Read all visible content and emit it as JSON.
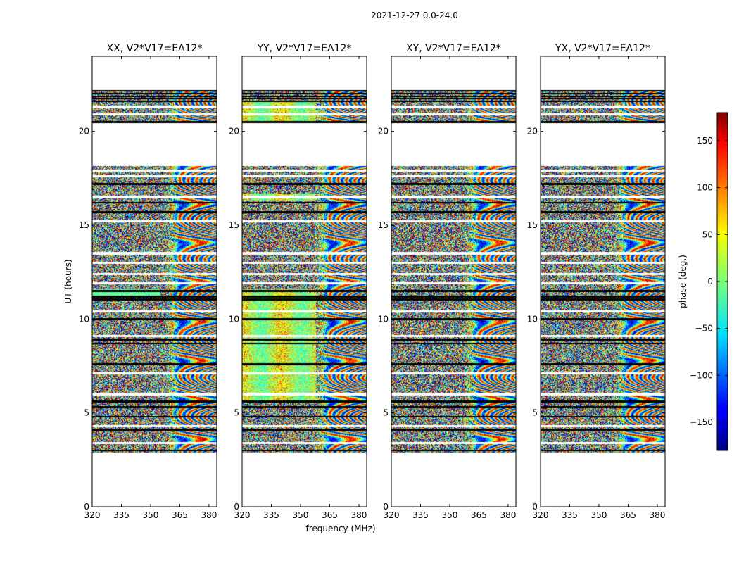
{
  "chart_data": {
    "type": "heatmap",
    "suptitle": "2021-12-27 0.0-24.0",
    "panels": [
      {
        "title": "XX, V2*V17=EA12*",
        "pol": "XX"
      },
      {
        "title": "YY, V2*V17=EA12*",
        "pol": "YY"
      },
      {
        "title": "XY, V2*V17=EA12*",
        "pol": "XY"
      },
      {
        "title": "YX, V2*V17=EA12*",
        "pol": "YX"
      }
    ],
    "xlabel": "frequency (MHz)",
    "ylabel": "UT (hours)",
    "xlim": [
      320,
      384
    ],
    "ylim": [
      0,
      24
    ],
    "xticks": [
      320,
      335,
      350,
      365,
      380
    ],
    "yticks": [
      0,
      5,
      10,
      15,
      20
    ],
    "colorbar": {
      "label": "phase (deg.)",
      "colormap": "jet",
      "range": [
        -180,
        180
      ],
      "ticks": [
        -150,
        -100,
        -50,
        0,
        50,
        100,
        150
      ]
    },
    "data_time_range": [
      2.9,
      22.2
    ],
    "empty_bands": [
      [
        18.2,
        20.5
      ],
      [
        0,
        2.9
      ],
      [
        22.2,
        24
      ]
    ]
  }
}
